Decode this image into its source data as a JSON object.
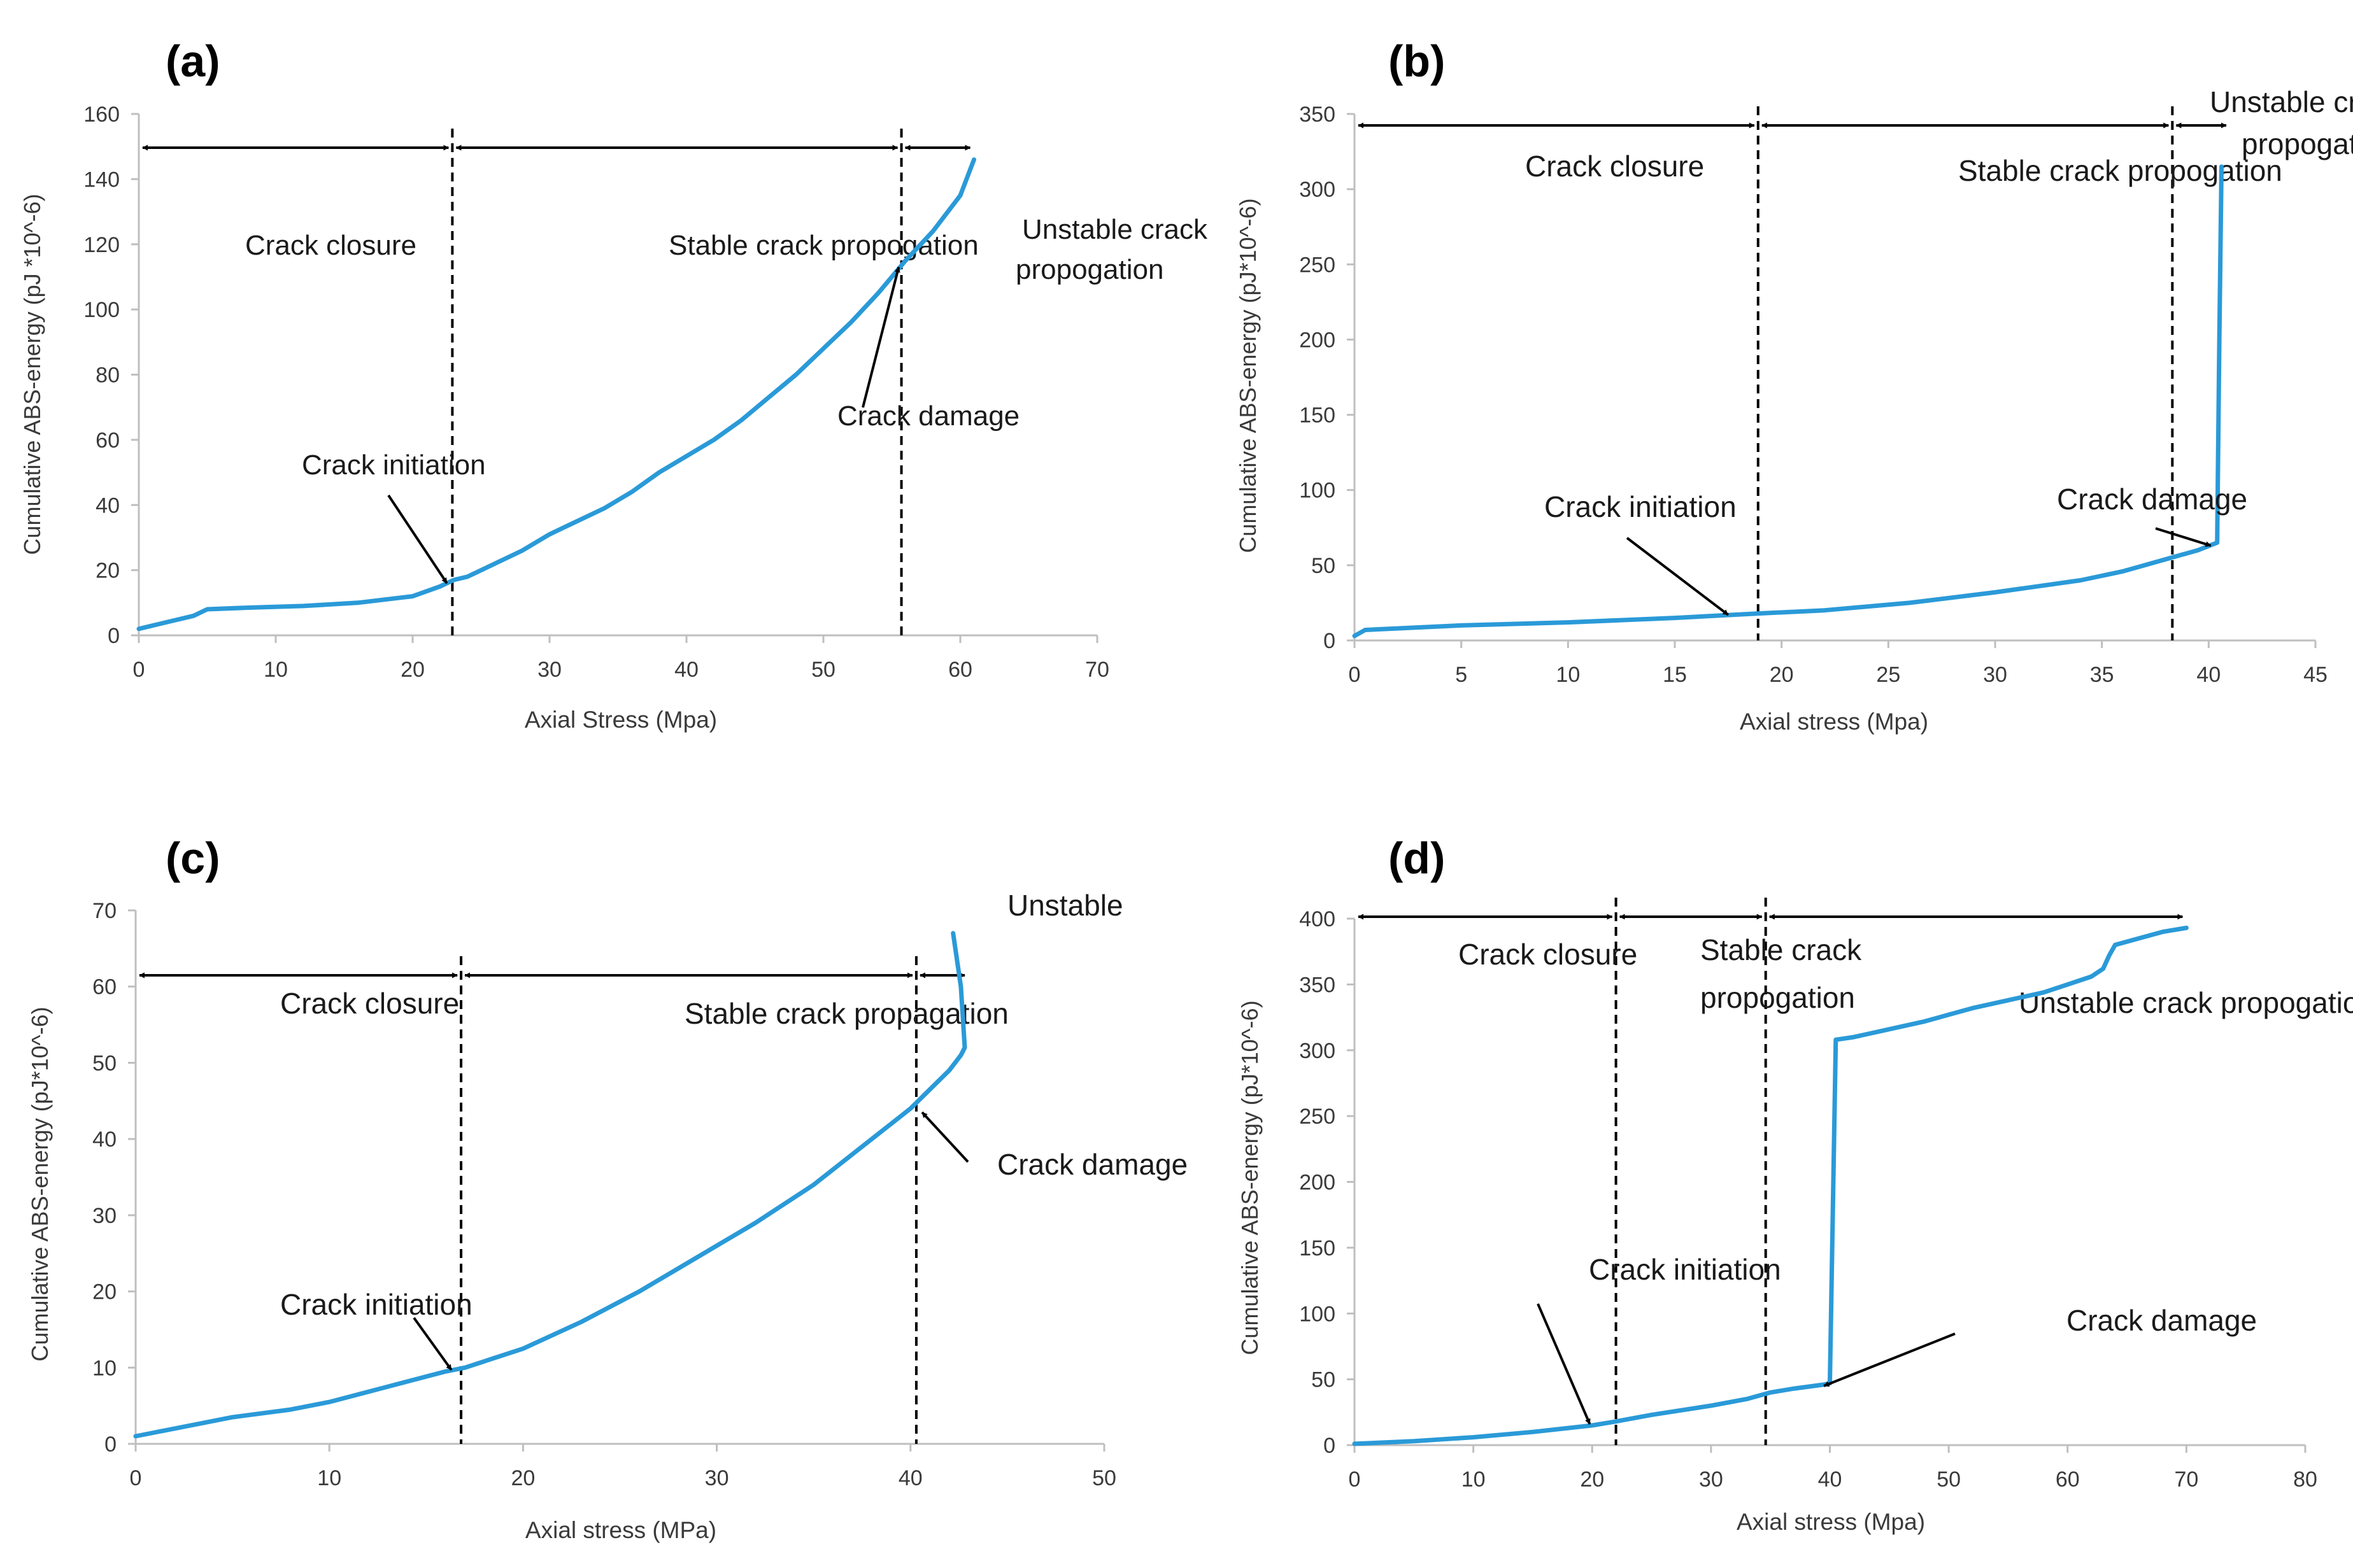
{
  "chart_data": [
    {
      "panel": "(a)",
      "type": "line",
      "xlabel": "Axial Stress (Mpa)",
      "ylabel": "Cumulative ABS-energy (pJ *10^-6)",
      "xlim": [
        0,
        70
      ],
      "ylim": [
        0,
        160
      ],
      "xticks": [
        "0",
        "10",
        "20",
        "30",
        "40",
        "50",
        "60",
        "70"
      ],
      "yticks": [
        "0",
        "20",
        "40",
        "60",
        "80",
        "100",
        "120",
        "140",
        "160"
      ],
      "line_color": "#2A9AD8",
      "series": [
        {
          "name": "Cumulative ABS-energy",
          "x": [
            0,
            2,
            4,
            5,
            8,
            12,
            16,
            20,
            22,
            23,
            24,
            26,
            28,
            30,
            32,
            34,
            36,
            38,
            40,
            42,
            44,
            46,
            48,
            50,
            52,
            54,
            55,
            56,
            58,
            60,
            61
          ],
          "y": [
            2,
            4,
            6,
            8,
            8.5,
            9,
            10,
            12,
            15,
            17,
            18,
            22,
            26,
            31,
            35,
            39,
            44,
            50,
            55,
            60,
            66,
            73,
            80,
            88,
            96,
            105,
            110,
            115,
            124,
            135,
            146
          ]
        }
      ],
      "dividers": [
        {
          "x": 22.9
        },
        {
          "x": 55.7
        }
      ],
      "regions": [
        {
          "label": "Crack closure",
          "from": 0,
          "to": 22.9
        },
        {
          "label": "Stable crack propogation",
          "from": 22.9,
          "to": 55.7
        },
        {
          "label_lines": [
            "Unstable crack",
            "propogation"
          ],
          "from": 55.7,
          "to": 61
        }
      ],
      "annotations": [
        {
          "label": "Crack initiation",
          "arrow_to": [
            22.5,
            16
          ]
        },
        {
          "label": "Crack damage",
          "arrow_to": [
            55.5,
            113
          ]
        }
      ]
    },
    {
      "panel": "(b)",
      "type": "line",
      "xlabel": "Axial stress (Mpa)",
      "ylabel": "Cumulative ABS-energy (pJ*10^-6)",
      "xlim": [
        0,
        45
      ],
      "ylim": [
        0,
        350
      ],
      "xticks": [
        "0",
        "5",
        "10",
        "15",
        "20",
        "25",
        "30",
        "35",
        "40",
        "45"
      ],
      "yticks": [
        "0",
        "50",
        "100",
        "150",
        "200",
        "250",
        "300",
        "350"
      ],
      "line_color": "#2A9AD8",
      "series": [
        {
          "name": "Cumulative ABS-energy",
          "x": [
            0,
            0.5,
            2,
            5,
            10,
            15,
            19,
            22,
            26,
            30,
            34,
            36,
            38,
            39.5,
            40.4,
            40.5,
            40.6
          ],
          "y": [
            3,
            7,
            8,
            10,
            12,
            15,
            18,
            20,
            25,
            32,
            40,
            46,
            54,
            60,
            65,
            200,
            315
          ]
        }
      ],
      "dividers": [
        {
          "x": 18.9
        },
        {
          "x": 38.3
        }
      ],
      "regions": [
        {
          "label": "Crack closure",
          "from": 0,
          "to": 18.9
        },
        {
          "label": "Stable crack propogation",
          "from": 18.9,
          "to": 38.3
        },
        {
          "label_lines": [
            "Unstable  crack",
            "propogation"
          ],
          "from": 38.3,
          "to": 41
        }
      ],
      "annotations": [
        {
          "label": "Crack initiation",
          "arrow_to": [
            17.5,
            17
          ]
        },
        {
          "label": "Crack damage",
          "arrow_to": [
            40.1,
            63
          ]
        }
      ]
    },
    {
      "panel": "(c)",
      "type": "line",
      "xlabel": "Axial stress (MPa)",
      "ylabel": "Cumulative ABS-energy (pJ*10^-6)",
      "xlim": [
        0,
        50
      ],
      "ylim": [
        0,
        70
      ],
      "xticks": [
        "0",
        "10",
        "20",
        "30",
        "40",
        "50"
      ],
      "yticks": [
        "0",
        "10",
        "20",
        "30",
        "40",
        "50",
        "60",
        "70"
      ],
      "line_color": "#2A9AD8",
      "series": [
        {
          "name": "Cumulative ABS-energy",
          "x": [
            0,
            1,
            3,
            5,
            8,
            10,
            13,
            16,
            17,
            20,
            23,
            26,
            29,
            32,
            35,
            37,
            39,
            40,
            41,
            42,
            42.6,
            42.8,
            42.6,
            42.2
          ],
          "y": [
            1,
            1.5,
            2.5,
            3.5,
            4.5,
            5.5,
            7.5,
            9.5,
            10,
            12.5,
            16,
            20,
            24.5,
            29,
            34,
            38,
            42,
            44,
            46.5,
            49,
            51,
            52,
            60,
            67
          ]
        }
      ],
      "dividers": [
        {
          "x": 16.8
        },
        {
          "x": 40.3
        }
      ],
      "regions": [
        {
          "label": "Crack closure",
          "from": 0,
          "to": 16.8
        },
        {
          "label": "Stable crack propagation",
          "from": 16.8,
          "to": 40.3
        },
        {
          "label": "Unstable",
          "from": 40.3,
          "to": 43
        }
      ],
      "annotations": [
        {
          "label": "Crack initiation",
          "arrow_to": [
            16.3,
            9.7
          ]
        },
        {
          "label": "Crack damage",
          "arrow_to": [
            40.6,
            43.5
          ]
        }
      ]
    },
    {
      "panel": "(d)",
      "type": "line",
      "xlabel": "Axial stress (Mpa)",
      "ylabel": "Cumulative ABS-energy (pJ*10^-6)",
      "xlim": [
        0,
        80
      ],
      "ylim": [
        0,
        400
      ],
      "xticks": [
        "0",
        "10",
        "20",
        "30",
        "40",
        "50",
        "60",
        "70",
        "80"
      ],
      "yticks": [
        "0",
        "50",
        "100",
        "150",
        "200",
        "250",
        "300",
        "350",
        "400"
      ],
      "line_color": "#2A9AD8",
      "series": [
        {
          "name": "Cumulative ABS-energy",
          "x": [
            0,
            5,
            10,
            15,
            20,
            22,
            25,
            30,
            33,
            35,
            37,
            39.5,
            40,
            40.5,
            42,
            45,
            48,
            50,
            52,
            55,
            58,
            60,
            62,
            63,
            63.5,
            64,
            66,
            68,
            70
          ],
          "y": [
            1,
            3,
            6,
            10,
            15,
            18,
            23,
            30,
            35,
            40,
            43,
            46,
            47,
            308,
            310,
            316,
            322,
            327,
            332,
            338,
            344,
            350,
            356,
            362,
            372,
            380,
            385,
            390,
            393
          ]
        }
      ],
      "dividers": [
        {
          "x": 22
        },
        {
          "x": 34.6
        }
      ],
      "regions": [
        {
          "label": "Crack closure",
          "from": 0,
          "to": 22
        },
        {
          "label_lines": [
            "Stable crack",
            "propogation"
          ],
          "from": 22,
          "to": 34.6
        },
        {
          "label": "Unstable crack propogation",
          "from": 34.6,
          "to": 70
        }
      ],
      "annotations": [
        {
          "label": "Crack initiation",
          "arrow_to": [
            19.8,
            16
          ]
        },
        {
          "label": "Crack damage",
          "arrow_to": [
            39.5,
            45
          ]
        }
      ]
    }
  ]
}
